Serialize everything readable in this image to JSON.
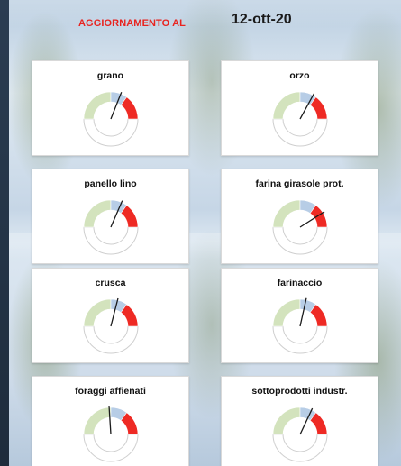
{
  "header": {
    "label": "AGGIORNAMENTO AL",
    "date": "12-ott-20"
  },
  "colors": {
    "label_red": "#e8231f",
    "zone_green": "#d3e3bd",
    "zone_blue": "#b7cde6",
    "zone_red": "#ee2a24",
    "needle": "#1a1a1a"
  },
  "cards": [
    {
      "title": "grano",
      "needle_value": 0.62
    },
    {
      "title": "orzo",
      "needle_value": 0.66
    },
    {
      "title": "panello lino",
      "needle_value": 0.63
    },
    {
      "title": "farina girasole prot.",
      "needle_value": 0.82
    },
    {
      "title": "crusca",
      "needle_value": 0.58
    },
    {
      "title": "farinaccio",
      "needle_value": 0.57
    },
    {
      "title": "foraggi affienati",
      "needle_value": 0.48
    },
    {
      "title": "sottoprodotti industr.",
      "needle_value": 0.64
    }
  ]
}
